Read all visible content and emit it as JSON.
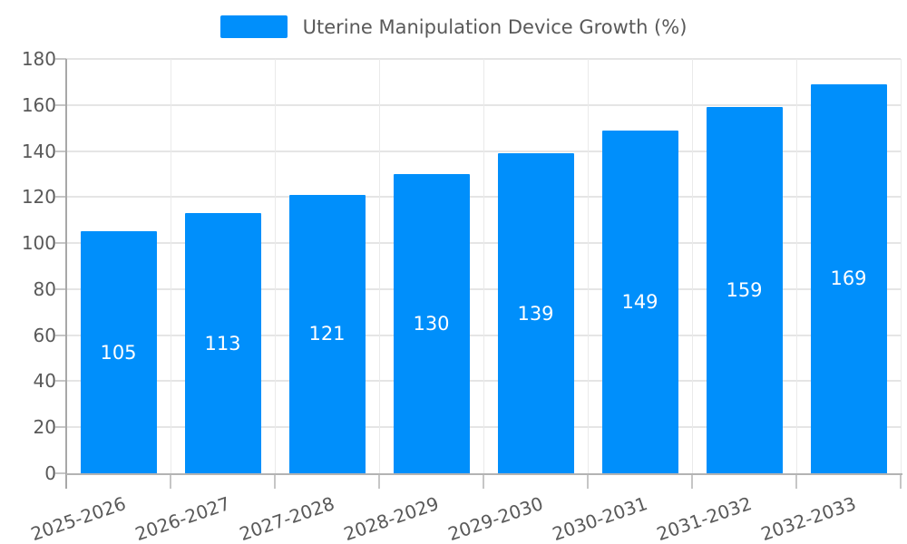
{
  "chart_data": {
    "type": "bar",
    "title": "Uterine Manipulation Device Growth (%)",
    "categories": [
      "2025-2026",
      "2026-2027",
      "2027-2028",
      "2028-2029",
      "2029-2030",
      "2030-2031",
      "2031-2032",
      "2032-2033"
    ],
    "values": [
      105,
      113,
      121,
      130,
      139,
      149,
      159,
      169
    ],
    "xlabel": "",
    "ylabel": "",
    "ylim": [
      0,
      180
    ],
    "ytick_step": 20,
    "yticks": [
      0,
      20,
      40,
      60,
      80,
      100,
      120,
      140,
      160,
      180
    ],
    "grid": true,
    "legend_position": "top-center",
    "bar_labels_position": "inside-center",
    "colors": {
      "bar": "#008FFB",
      "bar_label": "#FFFFFF",
      "axis_text": "#595959",
      "h_gridline": "#E5E5E5",
      "v_gridline": "#EAEAEA",
      "y_axis_line": "#A8A8A8",
      "x_axis_line": "#B3B3B3",
      "tick": "#C6C6C6",
      "background": "#FFFFFF"
    }
  }
}
